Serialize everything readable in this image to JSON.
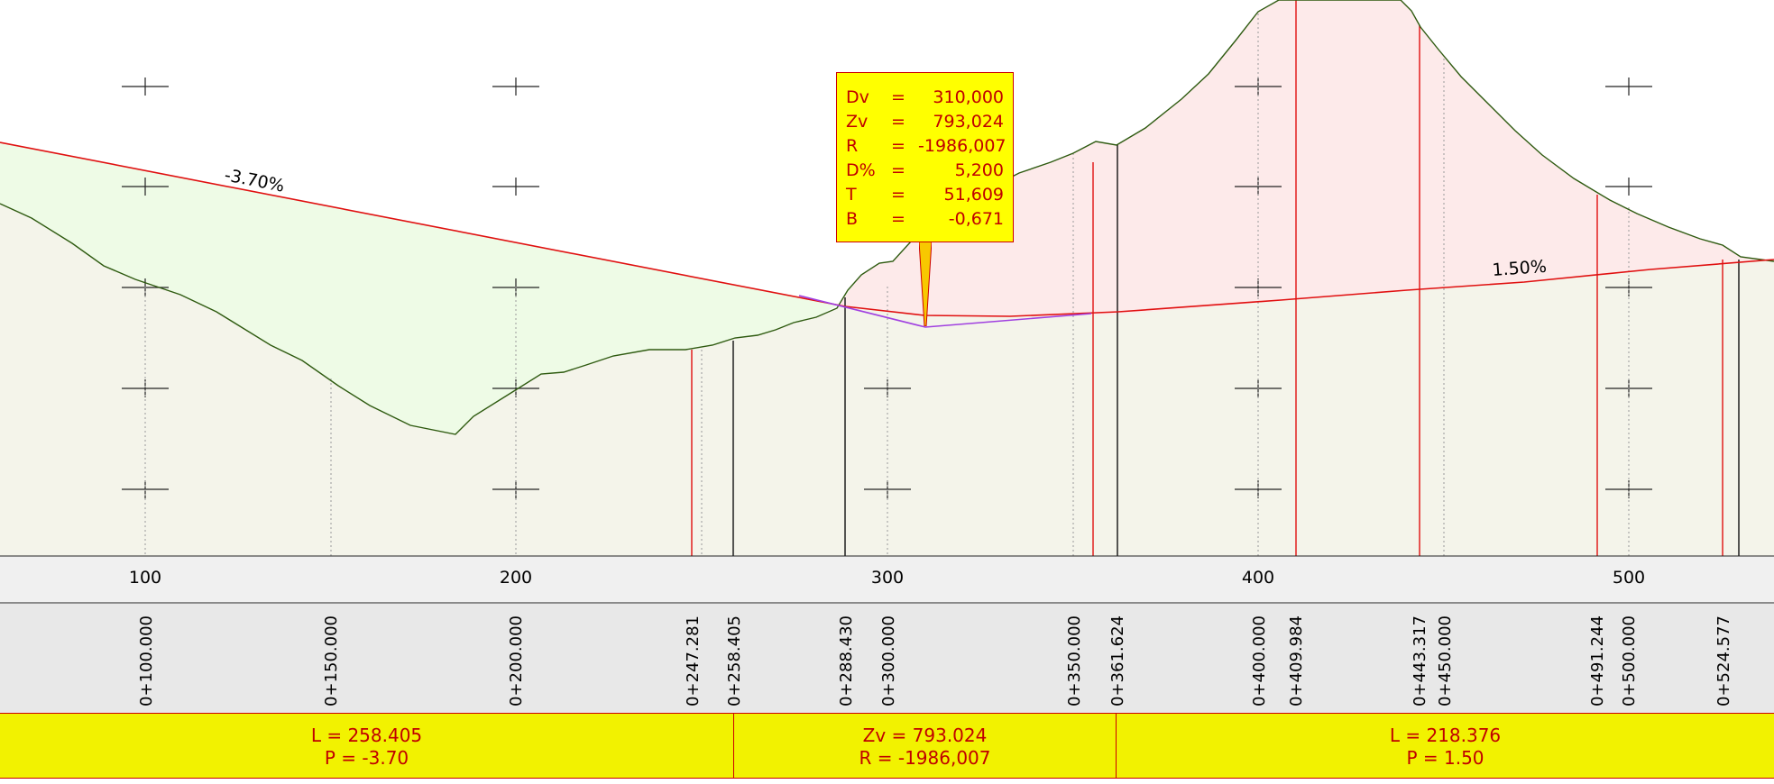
{
  "colors": {
    "cut_fill": "#fdeaea",
    "fill_fill": "#eefbe6",
    "ground_fill": "#f4f4ea",
    "design_line": "#e01010",
    "terrain_line": "#2e5a10",
    "curve_line": "#a040e0",
    "label_yellow": "#f2f200",
    "label_text": "#c00000"
  },
  "grades": [
    "-3.70%",
    "1.50%"
  ],
  "axis": {
    "ticks": [
      "100",
      "200",
      "300",
      "400",
      "500"
    ]
  },
  "chainages": [
    "0+100.000",
    "0+150.000",
    "0+200.000",
    "0+247.281",
    "0+258.405",
    "0+288.430",
    "0+300.000",
    "0+350.000",
    "0+361.624",
    "0+400.000",
    "0+409.984",
    "0+443.317",
    "0+450.000",
    "0+491.244",
    "0+500.000",
    "0+524.577"
  ],
  "curve_info": [
    {
      "key": "Dv",
      "eq": "=",
      "value": "310,000"
    },
    {
      "key": "Zv",
      "eq": "=",
      "value": "793,024"
    },
    {
      "key": "R",
      "eq": "=",
      "value": "-1986,007"
    },
    {
      "key": "D%",
      "eq": "=",
      "value": "5,200"
    },
    {
      "key": "T",
      "eq": "=",
      "value": "51,609"
    },
    {
      "key": "B",
      "eq": "=",
      "value": "-0,671"
    }
  ],
  "segments": [
    {
      "line1": "L = 258.405",
      "line2": "P = -3.70"
    },
    {
      "line1": "Zv = 793.024",
      "line2": "R = -1986,007"
    },
    {
      "line1": "L = 218.376",
      "line2": "P = 1.50"
    }
  ]
}
